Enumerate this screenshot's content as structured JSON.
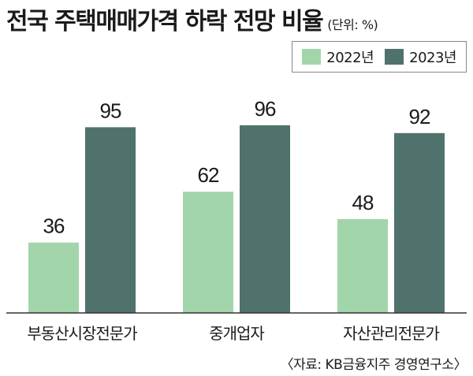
{
  "header": {
    "title": "전국 주택매매가격 하락 전망 비율",
    "unit": "(단위: %)"
  },
  "colors": {
    "series_2022": "#a3d5ab",
    "series_2023": "#4f726c",
    "axis": "#333333"
  },
  "chart_data": {
    "type": "bar",
    "title": "전국 주택매매가격 하락 전망 비율",
    "unit": "(단위: %)",
    "categories": [
      "부동산시장전문가",
      "중개업자",
      "자산관리전문가"
    ],
    "series": [
      {
        "name": "2022년",
        "values": [
          36,
          62,
          48
        ]
      },
      {
        "name": "2023년",
        "values": [
          95,
          96,
          92
        ]
      }
    ],
    "ylim": [
      0,
      100
    ],
    "grid": false,
    "legend": "top-right"
  },
  "footer": {
    "source": "〈자료: KB금융지주 경영연구소〉"
  }
}
